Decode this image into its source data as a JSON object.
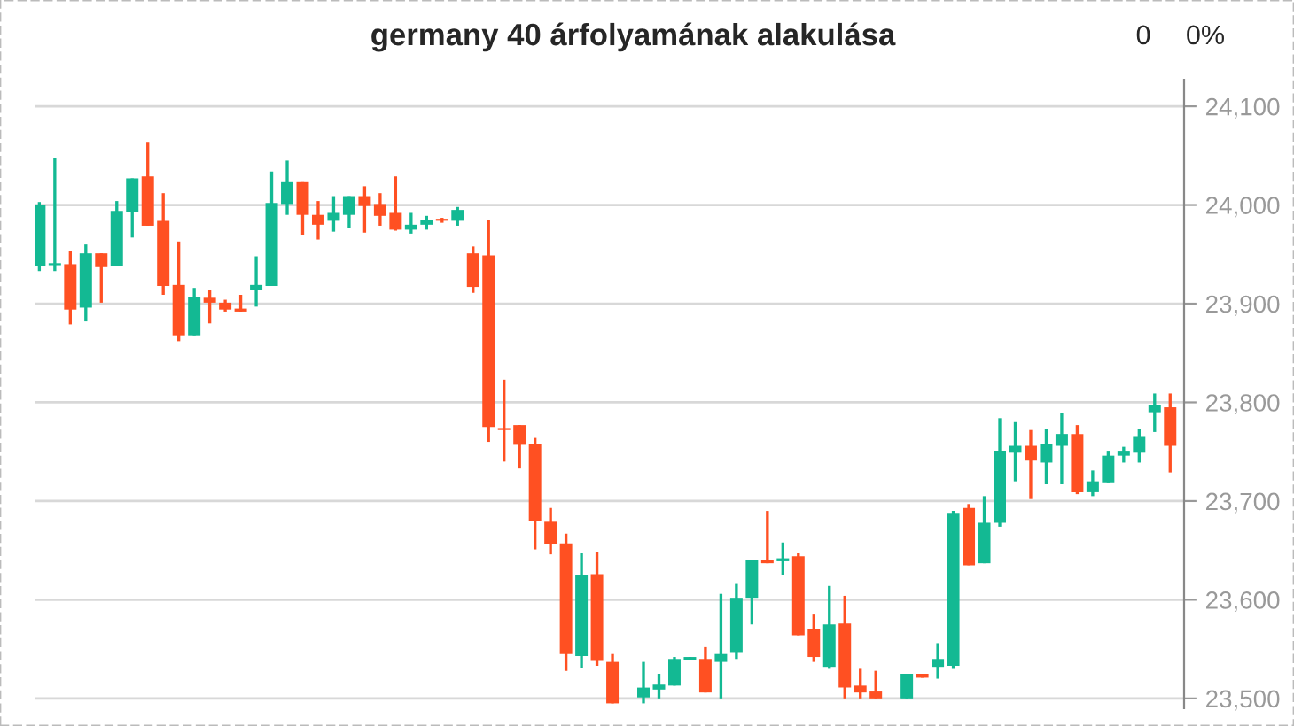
{
  "chart_data": {
    "type": "candlestick",
    "title": "germany 40 árfolyamának alakulása",
    "annotations": [
      "0",
      "0%"
    ],
    "categories": [
      null,
      null,
      null,
      null,
      null,
      null,
      null,
      null,
      null,
      null,
      null,
      null,
      null,
      null,
      null,
      null,
      null,
      null,
      null,
      null,
      null,
      null,
      null,
      null,
      null,
      null,
      null,
      null,
      null,
      null,
      null,
      null,
      null,
      null,
      null,
      null,
      null,
      null,
      null,
      null,
      null,
      null,
      null,
      null,
      null,
      null,
      null,
      null,
      null,
      null,
      null,
      null,
      null,
      null,
      null,
      null,
      null,
      null,
      null,
      null,
      null,
      null,
      null,
      null,
      null,
      null,
      null,
      null,
      null,
      null,
      null,
      null,
      null,
      null
    ],
    "ohlc": [
      [
        23938,
        24003,
        23933,
        24000
      ],
      [
        23939,
        24048,
        23933,
        23941
      ],
      [
        23940,
        23953,
        23879,
        23894
      ],
      [
        23896,
        23960,
        23882,
        23951
      ],
      [
        23951,
        23951,
        23901,
        23937
      ],
      [
        23938,
        24004,
        23938,
        23994
      ],
      [
        23993,
        24027,
        23967,
        24027
      ],
      [
        24029,
        24064,
        23979,
        23979
      ],
      [
        23984,
        24012,
        23909,
        23918
      ],
      [
        23919,
        23963,
        23862,
        23868
      ],
      [
        23868,
        23916,
        23868,
        23907
      ],
      [
        23906,
        23914,
        23880,
        23901
      ],
      [
        23901,
        23904,
        23892,
        23894
      ],
      [
        23895,
        23909,
        23892,
        23892
      ],
      [
        23914,
        23948,
        23897,
        23919
      ],
      [
        23918,
        24034,
        23918,
        24002
      ],
      [
        24001,
        24045,
        23990,
        24024
      ],
      [
        24024,
        24024,
        23970,
        23990
      ],
      [
        23990,
        24004,
        23965,
        23980
      ],
      [
        23984,
        24009,
        23973,
        23992
      ],
      [
        23990,
        24009,
        23977,
        24009
      ],
      [
        24009,
        24019,
        23972,
        23999
      ],
      [
        24001,
        24012,
        23979,
        23989
      ],
      [
        23992,
        24029,
        23974,
        23975
      ],
      [
        23975,
        23992,
        23971,
        23980
      ],
      [
        23980,
        23989,
        23975,
        23985
      ],
      [
        23986,
        23987,
        23982,
        23984
      ],
      [
        23984,
        23998,
        23979,
        23995
      ],
      [
        23951,
        23958,
        23911,
        23917
      ],
      [
        23949,
        23985,
        23760,
        23775
      ],
      [
        23774,
        23823,
        23740,
        23772
      ],
      [
        23777,
        23777,
        23733,
        23757
      ],
      [
        23758,
        23764,
        23651,
        23680
      ],
      [
        23679,
        23693,
        23646,
        23656
      ],
      [
        23657,
        23667,
        23528,
        23545
      ],
      [
        23543,
        23647,
        23531,
        23625
      ],
      [
        23626,
        23648,
        23533,
        23538
      ],
      [
        23537,
        23545,
        23495,
        23495
      ],
      null,
      [
        23501,
        23537,
        23495,
        23511
      ],
      [
        23509,
        23525,
        23500,
        23514
      ],
      [
        23513,
        23542,
        23513,
        23540
      ],
      [
        23539,
        23542,
        23539,
        23542
      ],
      [
        23540,
        23552,
        23506,
        23506
      ],
      [
        23537,
        23606,
        23500,
        23545
      ],
      [
        23547,
        23616,
        23540,
        23602
      ],
      [
        23602,
        23640,
        23575,
        23640
      ],
      [
        23640,
        23690,
        23637,
        23637
      ],
      [
        23639,
        23658,
        23625,
        23642
      ],
      [
        23644,
        23647,
        23564,
        23564
      ],
      [
        23570,
        23585,
        23537,
        23542
      ],
      [
        23532,
        23614,
        23530,
        23575
      ],
      [
        23576,
        23604,
        23500,
        23511
      ],
      [
        23513,
        23530,
        23500,
        23506
      ],
      [
        23507,
        23528,
        23500,
        23500
      ],
      null,
      [
        23500,
        23525,
        23500,
        23525
      ],
      [
        23525,
        23525,
        23521,
        23521
      ],
      [
        23532,
        23556,
        23520,
        23540
      ],
      [
        23533,
        23690,
        23530,
        23688
      ],
      [
        23693,
        23697,
        23635,
        23635
      ],
      [
        23637,
        23705,
        23637,
        23678
      ],
      [
        23678,
        23784,
        23674,
        23751
      ],
      [
        23749,
        23780,
        23720,
        23756
      ],
      [
        23756,
        23772,
        23702,
        23741
      ],
      [
        23739,
        23773,
        23717,
        23758
      ],
      [
        23756,
        23789,
        23717,
        23768
      ],
      [
        23768,
        23777,
        23707,
        23709
      ],
      [
        23709,
        23731,
        23705,
        23720
      ],
      [
        23719,
        23751,
        23719,
        23746
      ],
      [
        23746,
        23755,
        23739,
        23751
      ],
      [
        23749,
        23773,
        23739,
        23765
      ],
      [
        23790,
        23809,
        23770,
        23797
      ],
      [
        23795,
        23809,
        23729,
        23756
      ]
    ],
    "colors": [
      "#13b993",
      "#13b993",
      "#ff5022",
      "#13b993",
      "#ff5022",
      "#13b993",
      "#13b993",
      "#ff5022",
      "#ff5022",
      "#ff5022",
      "#13b993",
      "#ff5022",
      "#ff5022",
      "#ff5022",
      "#13b993",
      "#13b993",
      "#13b993",
      "#ff5022",
      "#ff5022",
      "#13b993",
      "#13b993",
      "#ff5022",
      "#ff5022",
      "#ff5022",
      "#13b993",
      "#13b993",
      "#ff5022",
      "#13b993",
      "#ff5022",
      "#ff5022",
      "#ff5022",
      "#ff5022",
      "#ff5022",
      "#ff5022",
      "#ff5022",
      "#13b993",
      "#ff5022",
      "#ff5022",
      null,
      "#13b993",
      "#13b993",
      "#13b993",
      "#13b993",
      "#ff5022",
      "#13b993",
      "#13b993",
      "#13b993",
      "#ff5022",
      "#13b993",
      "#ff5022",
      "#ff5022",
      "#13b993",
      "#ff5022",
      "#ff5022",
      "#ff5022",
      null,
      "#13b993",
      "#ff5022",
      "#13b993",
      "#13b993",
      "#ff5022",
      "#13b993",
      "#13b993",
      "#13b993",
      "#ff5022",
      "#13b993",
      "#13b993",
      "#ff5022",
      "#13b993",
      "#13b993",
      "#13b993",
      "#13b993",
      "#13b993",
      "#ff5022"
    ],
    "ylim": [
      23490,
      24127
    ],
    "yticks": [
      {
        "value": 23500,
        "label": "23,500"
      },
      {
        "value": 23600,
        "label": "23,600"
      },
      {
        "value": 23700,
        "label": "23,700"
      },
      {
        "value": 23800,
        "label": "23,800"
      },
      {
        "value": 23900,
        "label": "23,900"
      },
      {
        "value": 24000,
        "label": "24,000"
      },
      {
        "value": 24100,
        "label": "24,100"
      }
    ],
    "tick_labels": "y",
    "grid": "y",
    "legend": false
  }
}
